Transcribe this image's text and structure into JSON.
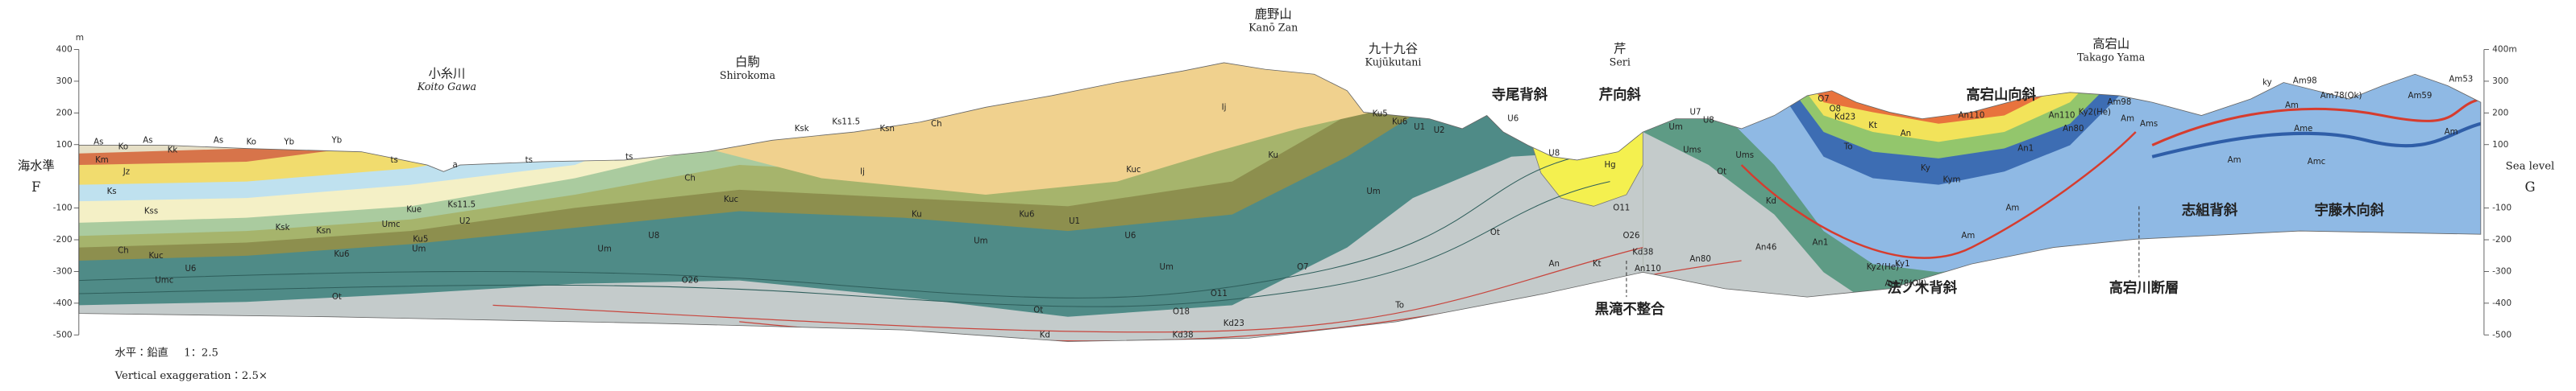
{
  "places": [
    {
      "ja": "小糸川",
      "en": "Koito Gawa"
    },
    {
      "ja": "白駒",
      "en": "Shirokoma"
    },
    {
      "ja": "鹿野山",
      "en": "Kanō Zan"
    },
    {
      "ja": "九十九谷",
      "en": "Kujūkutani"
    },
    {
      "ja": "芹",
      "en": "Seri"
    },
    {
      "ja": "高宕山",
      "en": "Takago Yama"
    }
  ],
  "structures": [
    "寺尾背斜",
    "芹向斜",
    "高宕山向斜",
    "黒滝不整合",
    "法ノ木背斜",
    "高宕川断層",
    "志組背斜",
    "宇藤木向斜"
  ],
  "left_axis": {
    "label": "海水準",
    "section": "F",
    "unit": "m",
    "ylim": [
      -500,
      400
    ],
    "ticks": [
      400,
      300,
      200,
      100,
      -100,
      -200,
      -300,
      -400,
      -500
    ]
  },
  "right_axis": {
    "label": "Sea level",
    "section": "G",
    "ylim": [
      -500,
      400
    ],
    "ticks": [
      {
        "value": 400,
        "label": "400m"
      },
      300,
      200,
      100,
      -100,
      -200,
      -300,
      -400,
      -500
    ]
  },
  "scale_note": {
    "ratio_label": "水平：鉛直",
    "ratio": "1：2.5",
    "exaggeration": "Vertical exaggeration：2.5×"
  },
  "layer_labels": [
    "As",
    "Ko",
    "As",
    "Kk",
    "As",
    "Ko",
    "Yb",
    "Yb",
    "Km",
    "Jz",
    "Ks",
    "Kss",
    "Ksk",
    "Ksn",
    "Ch",
    "Kuc",
    "U6",
    "Umc",
    "Ot",
    "Ku6",
    "Ku5",
    "ts",
    "a",
    "ts",
    "ts",
    "Ks11.5",
    "Kue",
    "Umc",
    "Um",
    "U8",
    "U2",
    "Ch",
    "Ksk",
    "Ks11.5",
    "Ksn",
    "Ch",
    "Ij",
    "Ij",
    "Kuc",
    "Ku",
    "Ku6",
    "U1",
    "U6",
    "Um",
    "Um",
    "Kuc",
    "Ku",
    "Um",
    "O7",
    "O11",
    "O26",
    "Ot",
    "O18",
    "Kd",
    "Kd38",
    "Kd23",
    "To",
    "Ku5",
    "Ku6",
    "U1",
    "U2",
    "U6",
    "Um",
    "Ot",
    "U8",
    "Hg",
    "O11",
    "O26",
    "Kd38",
    "Kt",
    "An",
    "An110",
    "An80",
    "An46",
    "An1",
    "Um",
    "U7",
    "U8",
    "Ums",
    "Ums",
    "Ot",
    "Kd",
    "O7",
    "O8",
    "Kd23",
    "Kt",
    "To",
    "An",
    "An110",
    "Ky",
    "Kym",
    "Am",
    "Am",
    "An110",
    "An80",
    "An1",
    "Ky2(He)",
    "Am98",
    "Am",
    "Ky2(He)",
    "Ky1",
    "Am78(Ok)",
    "Ams",
    "ky",
    "Am98",
    "Am78(Ok)",
    "Am",
    "Ame",
    "Amc",
    "Am",
    "Am59",
    "Am53",
    "Am"
  ]
}
